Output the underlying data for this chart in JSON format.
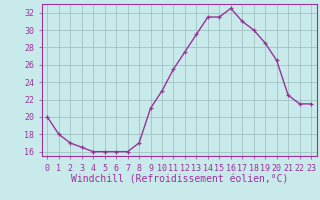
{
  "x": [
    0,
    1,
    2,
    3,
    4,
    5,
    6,
    7,
    8,
    9,
    10,
    11,
    12,
    13,
    14,
    15,
    16,
    17,
    18,
    19,
    20,
    21,
    22,
    23
  ],
  "y": [
    20,
    18,
    17,
    16.5,
    16,
    16,
    16,
    16,
    17,
    21,
    23,
    25.5,
    27.5,
    29.5,
    31.5,
    31.5,
    32.5,
    31,
    30,
    28.5,
    26.5,
    22.5,
    21.5,
    21.5
  ],
  "line_color": "#993399",
  "marker": "+",
  "background_color": "#c8eaea",
  "grid_color": "#99bbbb",
  "xlabel": "Windchill (Refroidissement éolien,°C)",
  "xlim": [
    -0.5,
    23.5
  ],
  "ylim": [
    15.5,
    33
  ],
  "yticks": [
    16,
    18,
    20,
    22,
    24,
    26,
    28,
    30,
    32
  ],
  "xticks": [
    0,
    1,
    2,
    3,
    4,
    5,
    6,
    7,
    8,
    9,
    10,
    11,
    12,
    13,
    14,
    15,
    16,
    17,
    18,
    19,
    20,
    21,
    22,
    23
  ],
  "tick_label_color": "#993399",
  "label_fontsize": 7,
  "tick_fontsize": 6,
  "spine_color": "#993399"
}
